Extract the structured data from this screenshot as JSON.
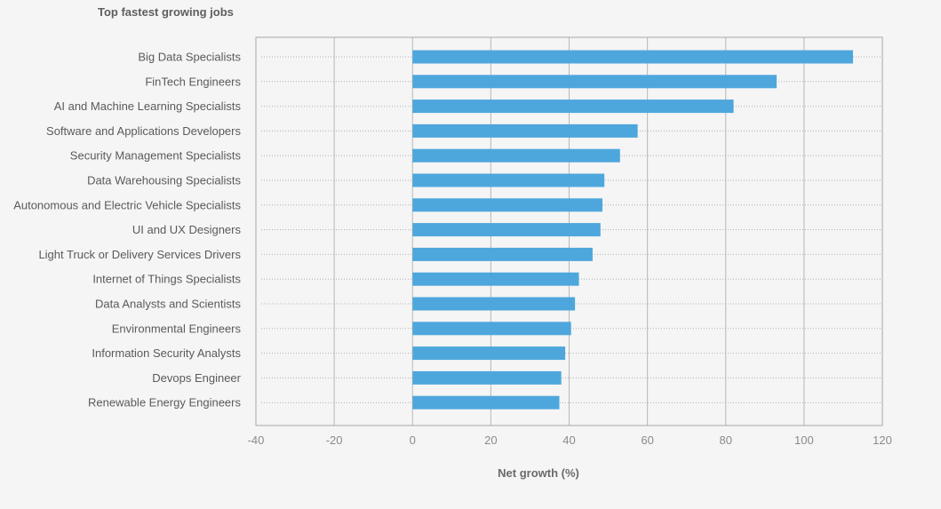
{
  "chart_data": {
    "type": "bar",
    "orientation": "horizontal",
    "title": "Top fastest growing jobs",
    "xlabel": "Net growth (%)",
    "ylabel": "",
    "xlim": [
      -40,
      120
    ],
    "xticks": [
      -40,
      -20,
      0,
      20,
      40,
      60,
      80,
      100,
      120
    ],
    "grid": true,
    "bar_color": "#4ea7dc",
    "categories": [
      "Big Data Specialists",
      "FinTech Engineers",
      "AI and Machine Learning Specialists",
      "Software and Applications Developers",
      "Security Management Specialists",
      "Data Warehousing Specialists",
      "Autonomous and Electric Vehicle Specialists",
      "UI and UX Designers",
      "Light Truck or Delivery Services Drivers",
      "Internet of Things Specialists",
      "Data Analysts and Scientists",
      "Environmental Engineers",
      "Information Security Analysts",
      "Devops Engineer",
      "Renewable Energy Engineers"
    ],
    "values": [
      112.5,
      93,
      82,
      57.5,
      53,
      49,
      48.5,
      48,
      46,
      42.5,
      41.5,
      40.5,
      39,
      38,
      37.5
    ]
  }
}
